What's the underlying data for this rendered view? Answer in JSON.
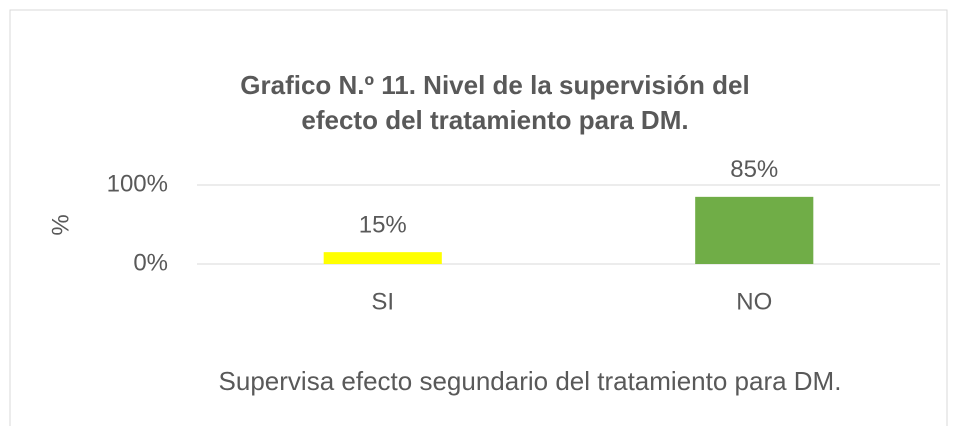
{
  "chart_data": {
    "type": "bar",
    "title": "Grafico N.º 11. Nivel de la supervisión del efecto del tratamiento para DM.",
    "x_label": "Supervisa efecto segundario del tratamiento para DM.",
    "y_label": "%",
    "categories": [
      "SI",
      "NO"
    ],
    "values": [
      15,
      85
    ],
    "value_labels": [
      "15%",
      "85%"
    ],
    "colors": [
      "#ffff00",
      "#70ad47"
    ],
    "ylim": [
      0,
      100
    ],
    "yticks": [
      {
        "value": 0,
        "label": "0%"
      },
      {
        "value": 100,
        "label": "100%"
      }
    ],
    "grid": true
  }
}
